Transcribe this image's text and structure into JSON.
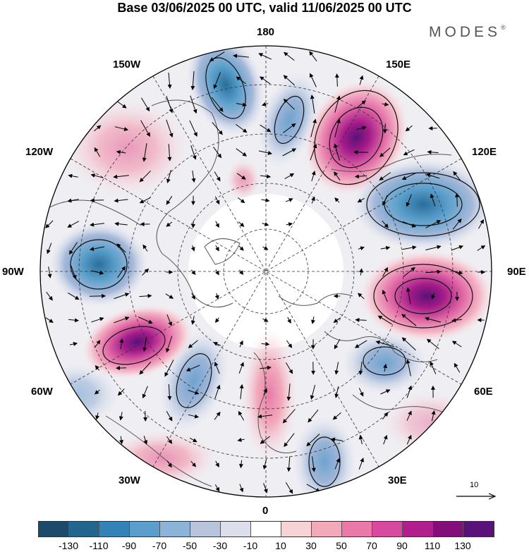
{
  "title": "Base 03/06/2025 00 UTC, valid 11/06/2025 00 UTC",
  "brand": "MODES",
  "brand_mark": "®",
  "lon_labels": {
    "n180": "180",
    "n150w": "150W",
    "n150e": "150E",
    "n120w": "120W",
    "n120e": "120E",
    "n90w": "90W",
    "n90e": "90E",
    "n60w": "60W",
    "n60e": "60E",
    "n30w": "30W",
    "n30e": "30E",
    "n0": "0"
  },
  "reference_vector": {
    "label": "10"
  },
  "colorbar": {
    "colors": [
      "#1b4a6b",
      "#20668f",
      "#3383b7",
      "#5a9fcb",
      "#8cb3d8",
      "#b8c3dc",
      "#dcdfeb",
      "#ffffff",
      "#f8d3d6",
      "#f2aabb",
      "#ea79a9",
      "#d74a9f",
      "#b11f8d",
      "#820d7b",
      "#5a1278"
    ],
    "labels": [
      "-130",
      "-110",
      "-90",
      "-70",
      "-50",
      "-30",
      "-10",
      "10",
      "30",
      "50",
      "70",
      "90",
      "110",
      "130"
    ]
  },
  "anomalies": [
    {
      "value": -45,
      "center_lon": -165
    },
    {
      "value": -60,
      "center_lon": 172
    },
    {
      "value": 125,
      "center_lon": 146
    },
    {
      "value": -115,
      "center_lon": 110
    },
    {
      "value": 110,
      "center_lon": 82
    },
    {
      "value": -75,
      "center_lon": 48
    },
    {
      "value": -60,
      "center_lon": 20
    },
    {
      "value": 55,
      "center_lon": 3
    },
    {
      "value": -70,
      "center_lon": -28
    },
    {
      "value": 100,
      "center_lon": -55
    },
    {
      "value": -70,
      "center_lon": -88
    },
    {
      "value": 30,
      "center_lon": -125
    }
  ]
}
